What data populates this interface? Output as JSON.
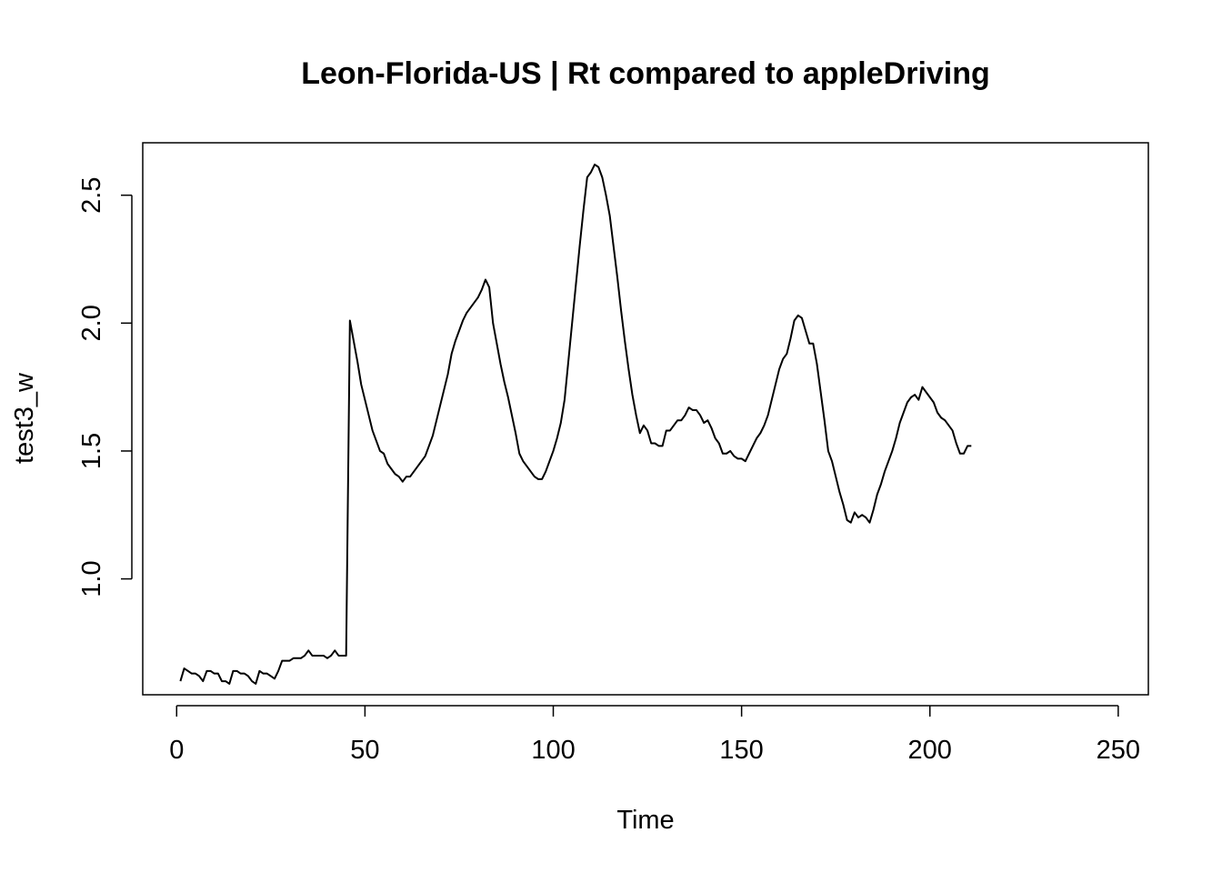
{
  "chart_data": {
    "type": "line",
    "title": "Leon-Florida-US | Rt compared to appleDriving",
    "xlabel": "Time",
    "ylabel": "test3_w",
    "xlim": [
      -9,
      258
    ],
    "ylim": [
      0.547,
      2.705
    ],
    "x_ticks": [
      0,
      50,
      100,
      150,
      200,
      250
    ],
    "y_ticks": [
      1.0,
      1.5,
      2.0,
      2.5
    ],
    "y_tick_labels": [
      "1.0",
      "1.5",
      "2.0",
      "2.5"
    ],
    "grid": false,
    "series": [
      {
        "color": "#000000",
        "x_start": 1,
        "values": [
          0.6,
          0.65,
          0.64,
          0.63,
          0.63,
          0.62,
          0.6,
          0.64,
          0.64,
          0.63,
          0.63,
          0.6,
          0.6,
          0.59,
          0.64,
          0.64,
          0.63,
          0.63,
          0.62,
          0.6,
          0.59,
          0.64,
          0.63,
          0.63,
          0.62,
          0.61,
          0.64,
          0.68,
          0.68,
          0.68,
          0.69,
          0.69,
          0.69,
          0.7,
          0.72,
          0.7,
          0.7,
          0.7,
          0.7,
          0.69,
          0.7,
          0.72,
          0.7,
          0.7,
          0.7,
          2.01,
          1.93,
          1.85,
          1.76,
          1.7,
          1.64,
          1.58,
          1.54,
          1.5,
          1.49,
          1.45,
          1.43,
          1.41,
          1.4,
          1.38,
          1.4,
          1.4,
          1.42,
          1.44,
          1.46,
          1.48,
          1.52,
          1.56,
          1.62,
          1.68,
          1.74,
          1.8,
          1.88,
          1.93,
          1.97,
          2.01,
          2.04,
          2.06,
          2.08,
          2.1,
          2.13,
          2.17,
          2.14,
          2.0,
          1.92,
          1.84,
          1.77,
          1.71,
          1.64,
          1.57,
          1.49,
          1.46,
          1.44,
          1.42,
          1.4,
          1.39,
          1.39,
          1.42,
          1.46,
          1.5,
          1.55,
          1.61,
          1.7,
          1.85,
          2.0,
          2.15,
          2.3,
          2.44,
          2.57,
          2.59,
          2.62,
          2.61,
          2.57,
          2.5,
          2.42,
          2.3,
          2.18,
          2.05,
          1.93,
          1.82,
          1.72,
          1.64,
          1.57,
          1.6,
          1.58,
          1.53,
          1.53,
          1.52,
          1.52,
          1.58,
          1.58,
          1.6,
          1.62,
          1.62,
          1.64,
          1.67,
          1.66,
          1.66,
          1.64,
          1.61,
          1.62,
          1.59,
          1.55,
          1.53,
          1.49,
          1.49,
          1.5,
          1.48,
          1.47,
          1.47,
          1.46,
          1.49,
          1.52,
          1.55,
          1.57,
          1.6,
          1.64,
          1.7,
          1.76,
          1.82,
          1.86,
          1.88,
          1.94,
          2.01,
          2.03,
          2.02,
          1.97,
          1.92,
          1.92,
          1.84,
          1.73,
          1.62,
          1.5,
          1.46,
          1.4,
          1.34,
          1.29,
          1.23,
          1.22,
          1.26,
          1.24,
          1.25,
          1.24,
          1.22,
          1.27,
          1.33,
          1.37,
          1.42,
          1.46,
          1.5,
          1.55,
          1.61,
          1.65,
          1.69,
          1.71,
          1.72,
          1.7,
          1.75,
          1.73,
          1.71,
          1.69,
          1.65,
          1.63,
          1.62,
          1.6,
          1.58,
          1.53,
          1.49,
          1.49,
          1.52,
          1.52
        ]
      }
    ]
  }
}
